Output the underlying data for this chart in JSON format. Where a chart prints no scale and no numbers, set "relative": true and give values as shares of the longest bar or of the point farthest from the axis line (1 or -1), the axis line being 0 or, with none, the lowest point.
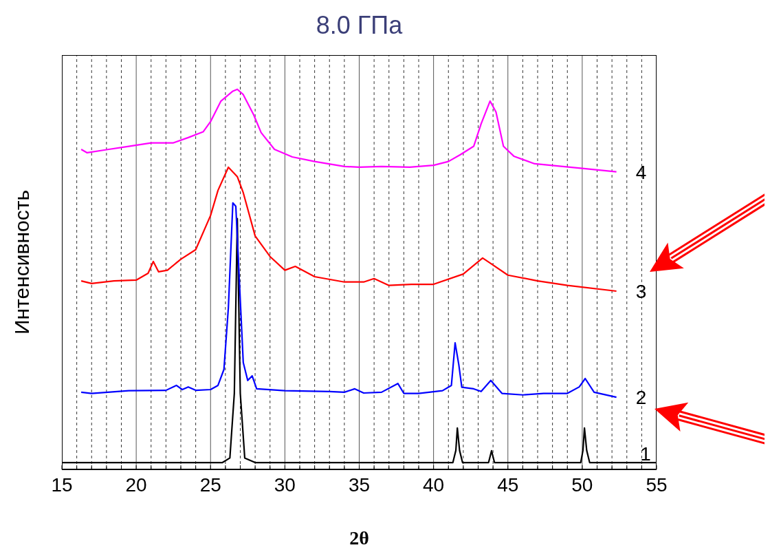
{
  "chart_data": {
    "type": "line",
    "title": "8.0 ГПа",
    "xlabel": "2θ",
    "ylabel": "Интенсивность",
    "relative": true,
    "grid": "x",
    "xlim": [
      15,
      55
    ],
    "xticks": [
      15,
      {
        "value": 16,
        "label": null
      },
      {
        "value": 17,
        "label": null
      },
      {
        "value": 18,
        "label": null
      },
      {
        "value": 19,
        "label": null
      },
      20,
      {
        "value": 21,
        "label": null
      },
      {
        "value": 22,
        "label": null
      },
      {
        "value": 23,
        "label": null
      },
      {
        "value": 24,
        "label": null
      },
      25,
      {
        "value": 26,
        "label": null
      },
      {
        "value": 27,
        "label": null
      },
      {
        "value": 28,
        "label": null
      },
      {
        "value": 29,
        "label": null
      },
      30,
      {
        "value": 31,
        "label": null
      },
      {
        "value": 32,
        "label": null
      },
      {
        "value": 33,
        "label": null
      },
      {
        "value": 34,
        "label": null
      },
      35,
      {
        "value": 36,
        "label": null
      },
      {
        "value": 37,
        "label": null
      },
      {
        "value": 38,
        "label": null
      },
      {
        "value": 39,
        "label": null
      },
      40,
      {
        "value": 41,
        "label": null
      },
      {
        "value": 42,
        "label": null
      },
      {
        "value": 43,
        "label": null
      },
      {
        "value": 44,
        "label": null
      },
      45,
      {
        "value": 46,
        "label": null
      },
      {
        "value": 47,
        "label": null
      },
      {
        "value": 48,
        "label": null
      },
      {
        "value": 49,
        "label": null
      },
      50,
      {
        "value": 51,
        "label": null
      },
      {
        "value": 52,
        "label": null
      },
      {
        "value": 53,
        "label": null
      },
      {
        "value": 54,
        "label": null
      },
      55
    ],
    "tick_labels": "x",
    "marker": "none",
    "line_style": "solid",
    "series": [
      {
        "name": "1",
        "color": "#000000",
        "x": [
          15,
          25.8,
          26.3,
          26.6,
          26.8,
          27.0,
          27.3,
          28,
          41.3,
          41.5,
          41.6,
          41.75,
          41.95,
          43.7,
          43.9,
          44.1,
          49.9,
          50.05,
          50.15,
          50.3,
          50.5,
          55
        ],
        "values": [
          0.018,
          0.018,
          0.03,
          0.2,
          0.66,
          0.2,
          0.03,
          0.018,
          0.018,
          0.05,
          0.109,
          0.05,
          0.018,
          0.018,
          0.049,
          0.018,
          0.018,
          0.05,
          0.109,
          0.05,
          0.018,
          0.018
        ]
      },
      {
        "name": "2",
        "color": "#0000ff",
        "x": [
          16.3,
          17,
          19.5,
          22,
          22.7,
          23.1,
          23.5,
          24,
          25,
          25.5,
          25.9,
          26.2,
          26.5,
          26.7,
          26.95,
          27.2,
          27.5,
          27.8,
          28.1,
          30,
          33,
          34,
          34.7,
          35.3,
          36.5,
          37.6,
          38,
          39,
          40.6,
          41.2,
          41.45,
          41.7,
          41.9,
          42.7,
          43.2,
          43.85,
          44.6,
          46,
          47.4,
          49,
          49.8,
          50.2,
          50.8,
          52.3
        ],
        "values": [
          0.203,
          0.2,
          0.207,
          0.208,
          0.221,
          0.21,
          0.217,
          0.208,
          0.21,
          0.221,
          0.263,
          0.426,
          0.701,
          0.692,
          0.487,
          0.281,
          0.234,
          0.246,
          0.212,
          0.207,
          0.205,
          0.203,
          0.212,
          0.201,
          0.203,
          0.226,
          0.2,
          0.2,
          0.207,
          0.221,
          0.333,
          0.275,
          0.216,
          0.212,
          0.205,
          0.234,
          0.2,
          0.196,
          0.2,
          0.2,
          0.217,
          0.239,
          0.203,
          0.19
        ]
      },
      {
        "name": "3",
        "color": "#ff0000",
        "x": [
          16.3,
          17,
          18.5,
          20,
          20.8,
          21.15,
          21.5,
          22.1,
          23,
          24,
          25,
          25.5,
          26.2,
          26.8,
          27.2,
          28,
          29,
          30,
          30.7,
          32,
          34,
          35.3,
          36,
          37,
          38.5,
          40,
          42,
          43.3,
          43.8,
          45,
          47,
          49,
          52.3
        ],
        "values": [
          0.496,
          0.489,
          0.496,
          0.498,
          0.516,
          0.547,
          0.52,
          0.524,
          0.553,
          0.578,
          0.668,
          0.734,
          0.795,
          0.77,
          0.728,
          0.614,
          0.56,
          0.524,
          0.534,
          0.507,
          0.493,
          0.493,
          0.502,
          0.484,
          0.487,
          0.487,
          0.514,
          0.556,
          0.543,
          0.511,
          0.496,
          0.484,
          0.469
        ]
      },
      {
        "name": "4",
        "color": "#ff00ff",
        "x": [
          16.3,
          16.7,
          18,
          19.5,
          21,
          22.5,
          23.5,
          24.5,
          25,
          25.7,
          26.5,
          26.8,
          27.2,
          27.9,
          28.4,
          29.3,
          30.5,
          32,
          34,
          35,
          36.5,
          38.4,
          40,
          41,
          41.8,
          42.7,
          43.2,
          43.8,
          44.2,
          44.7,
          45.4,
          46.8,
          50,
          52.3
        ],
        "values": [
          0.842,
          0.833,
          0.841,
          0.85,
          0.859,
          0.859,
          0.873,
          0.888,
          0.915,
          0.969,
          0.995,
          1,
          0.986,
          0.933,
          0.886,
          0.842,
          0.822,
          0.81,
          0.797,
          0.795,
          0.797,
          0.795,
          0.8,
          0.81,
          0.828,
          0.85,
          0.909,
          0.969,
          0.94,
          0.85,
          0.824,
          0.804,
          0.792,
          0.783
        ]
      }
    ]
  }
}
